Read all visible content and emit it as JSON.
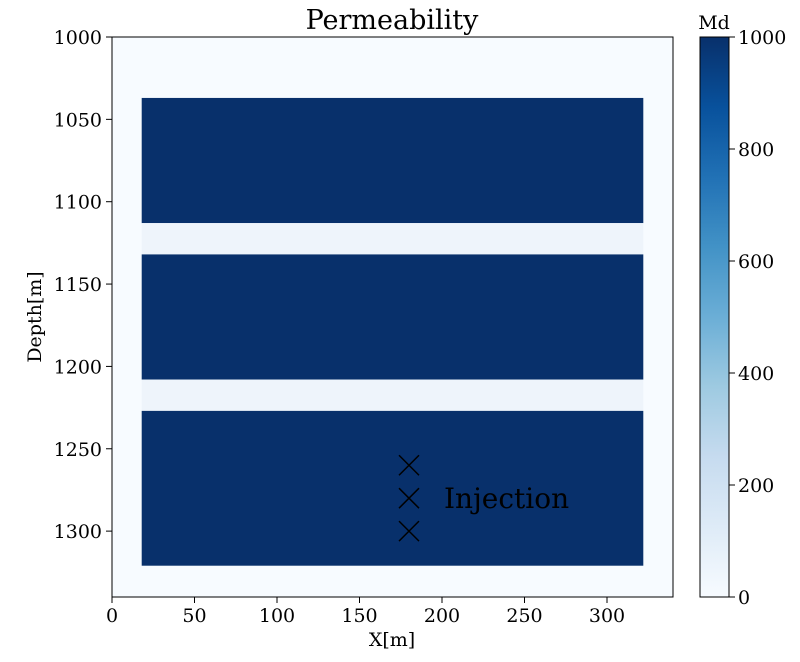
{
  "chart_data": {
    "type": "heatmap",
    "title": "Permeability",
    "xlabel": "X[m]",
    "ylabel": "Depth[m]",
    "xlim": [
      0,
      340
    ],
    "ylim": [
      1000,
      1340
    ],
    "y_inverted": true,
    "xticks": [
      0,
      50,
      100,
      150,
      200,
      250,
      300
    ],
    "yticks": [
      1000,
      1050,
      1100,
      1150,
      1200,
      1250,
      1300
    ],
    "colormap": "Blues",
    "colorbar": {
      "label": "Md",
      "range": [
        0,
        1000
      ],
      "ticks": [
        0,
        200,
        400,
        600,
        800,
        1000
      ]
    },
    "background_value": 0,
    "regions": [
      {
        "x": [
          18,
          322
        ],
        "depth": [
          1037,
          1113
        ],
        "value": 1000
      },
      {
        "x": [
          18,
          322
        ],
        "depth": [
          1113,
          1132
        ],
        "value": 20
      },
      {
        "x": [
          18,
          322
        ],
        "depth": [
          1132,
          1208
        ],
        "value": 1000
      },
      {
        "x": [
          18,
          322
        ],
        "depth": [
          1208,
          1227
        ],
        "value": 20
      },
      {
        "x": [
          18,
          322
        ],
        "depth": [
          1227,
          1321
        ],
        "value": 1000
      }
    ],
    "injection_points": [
      {
        "x": 180,
        "depth": 1260
      },
      {
        "x": 180,
        "depth": 1280
      },
      {
        "x": 180,
        "depth": 1300
      }
    ],
    "annotation": {
      "text": "Injection",
      "x": 200,
      "depth": 1280
    },
    "colors": {
      "min": "#f7fbff",
      "low": "#eef4fb",
      "max": "#08306b"
    }
  }
}
